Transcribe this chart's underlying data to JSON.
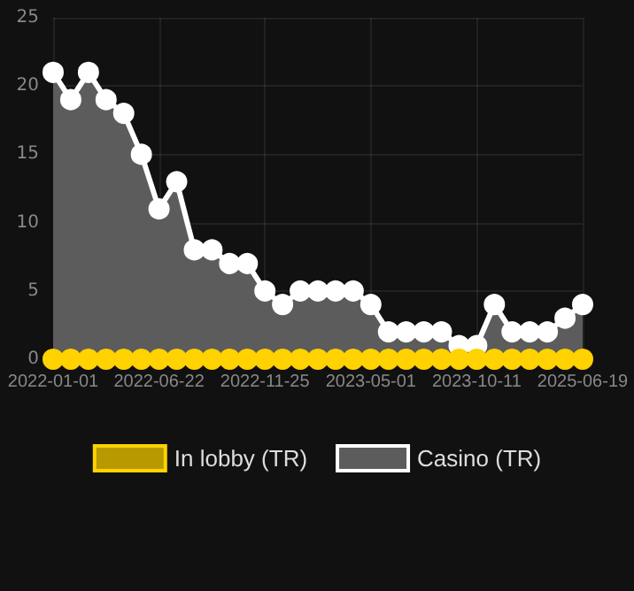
{
  "chart_data": {
    "type": "line",
    "categories": [
      "2022-01-01",
      null,
      null,
      null,
      null,
      null,
      "2022-06-22",
      null,
      null,
      null,
      null,
      null,
      "2022-11-25",
      null,
      null,
      null,
      null,
      null,
      "2023-05-01",
      null,
      null,
      null,
      null,
      null,
      "2023-10-11",
      null,
      null,
      null,
      null,
      null,
      "2025-06-19"
    ],
    "series": [
      {
        "name": "In lobby (TR)",
        "color": "#ffd200",
        "values": [
          0,
          0,
          0,
          0,
          0,
          0,
          0,
          0,
          0,
          0,
          0,
          0,
          0,
          0,
          0,
          0,
          0,
          0,
          0,
          0,
          0,
          0,
          0,
          0,
          0,
          0,
          0,
          0,
          0,
          0,
          0
        ]
      },
      {
        "name": "Casino (TR)",
        "type": "area",
        "color": "#ffffff",
        "values": [
          21,
          19,
          21,
          19,
          18,
          15,
          11,
          13,
          8,
          8,
          7,
          7,
          5,
          4,
          5,
          5,
          5,
          5,
          4,
          2,
          2,
          2,
          2,
          1,
          1,
          4,
          2,
          2,
          2,
          3,
          4
        ]
      }
    ],
    "ylim": [
      0,
      25
    ],
    "yticks": [
      0,
      5,
      10,
      15,
      20,
      25
    ],
    "grid": true,
    "legend": "bottom",
    "marker": "circle"
  }
}
